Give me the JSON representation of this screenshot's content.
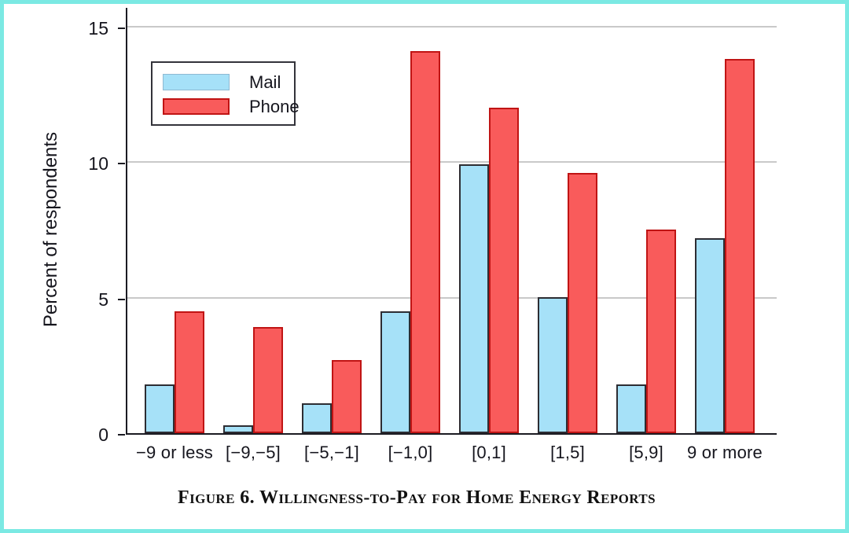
{
  "frame": {
    "border_color": "#7be9e3",
    "background": "#ffffff"
  },
  "figure": {
    "caption": "Figure 6. Willingness-to-Pay for Home Energy Reports"
  },
  "legend": {
    "items": [
      {
        "label": "Mail"
      },
      {
        "label": "Phone"
      }
    ]
  },
  "chart_data": {
    "type": "bar",
    "title": "Figure 6. Willingness-to-Pay for Home Energy Reports",
    "ylabel": "Percent of respondents",
    "xlabel": "",
    "categories": [
      "−9 or less",
      "[−9,−5]",
      "[−5,−1]",
      "[−1,0]",
      "[0,1]",
      "[1,5]",
      "[5,9]",
      "9 or more"
    ],
    "series": [
      {
        "name": "Mail",
        "color": "#a6e1f8",
        "border_color": "#2d2d33",
        "values": [
          1.8,
          0.3,
          1.1,
          4.5,
          9.9,
          5.0,
          1.8,
          7.2
        ]
      },
      {
        "name": "Phone",
        "color": "#f95b5b",
        "border_color": "#c01414",
        "values": [
          4.5,
          3.9,
          2.7,
          14.1,
          12.0,
          9.6,
          7.5,
          13.8
        ]
      }
    ],
    "ylim": [
      0,
      15
    ],
    "yticks": [
      0,
      5,
      10,
      15
    ],
    "grid": true,
    "gridline_color": "#c9c9c9",
    "legend_position": "upper left inside",
    "units": "percent"
  }
}
